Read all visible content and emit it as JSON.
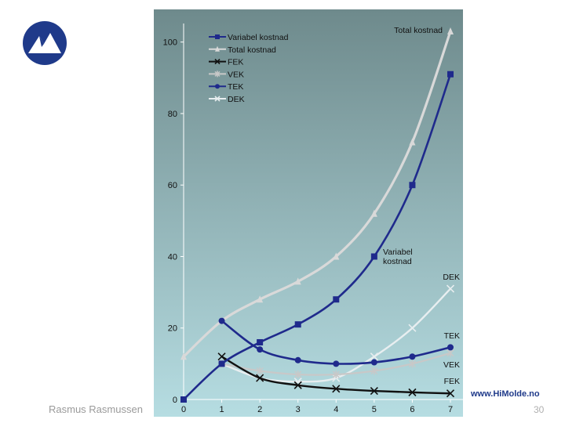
{
  "branding": {
    "author": "Rasmus Rasmussen",
    "website": "www.HiMolde.no",
    "page_number": "30"
  },
  "colors": {
    "plot_bg_top": "#6e8a8c",
    "plot_bg_bottom": "#b6dde2",
    "variable_cost": "#1f2a8c",
    "total_cost": "#d9d9d9",
    "fek": "#111111",
    "vek": "#c8c8c8",
    "tek": "#1f2a8c",
    "dek": "#e8eef0",
    "logo_circle": "#1f3a8a"
  },
  "chart_data": {
    "type": "line",
    "x": [
      0,
      1,
      2,
      3,
      4,
      5,
      6,
      7
    ],
    "xticks": [
      "0",
      "1",
      "2",
      "3",
      "4",
      "5",
      "6",
      "7"
    ],
    "yticks": [
      "0",
      "20",
      "40",
      "60",
      "80",
      "100"
    ],
    "ylim": [
      0,
      110
    ],
    "xlim": [
      0,
      7.3
    ],
    "series": [
      {
        "key": "variable_cost",
        "name": "Variabel kostnad",
        "marker": "square",
        "x": [
          0,
          1,
          2,
          3,
          4,
          5,
          6,
          7
        ],
        "values": [
          0,
          10,
          16,
          21,
          28,
          40,
          60,
          91
        ]
      },
      {
        "key": "total_cost",
        "name": "Total kostnad",
        "marker": "triangle",
        "x": [
          0,
          1,
          2,
          3,
          4,
          5,
          6,
          7
        ],
        "values": [
          12,
          22,
          28,
          33,
          40,
          52,
          72,
          103
        ]
      },
      {
        "key": "fek",
        "name": "FEK",
        "marker": "x",
        "x": [
          1,
          2,
          3,
          4,
          5,
          6,
          7
        ],
        "values": [
          12,
          6,
          4,
          3,
          2.4,
          2,
          1.7
        ]
      },
      {
        "key": "vek",
        "name": "VEK",
        "marker": "star",
        "x": [
          1,
          2,
          3,
          4,
          5,
          6,
          7
        ],
        "values": [
          10,
          8,
          7,
          7,
          8,
          10,
          13
        ]
      },
      {
        "key": "tek",
        "name": "TEK",
        "marker": "circle",
        "x": [
          1,
          2,
          3,
          4,
          5,
          6,
          7
        ],
        "values": [
          22,
          14,
          11,
          10,
          10.4,
          12,
          14.6
        ]
      },
      {
        "key": "dek",
        "name": "DEK",
        "marker": "x",
        "x": [
          1,
          2,
          3,
          4,
          5,
          6,
          7
        ],
        "values": [
          10,
          6,
          5,
          6,
          12,
          20,
          31
        ]
      }
    ],
    "annotations": [
      {
        "key": "ann_total",
        "text": "Total kostnad"
      },
      {
        "key": "ann_var",
        "text": "Variabel kostnad"
      },
      {
        "key": "ann_dek",
        "text": "DEK"
      },
      {
        "key": "ann_tek",
        "text": "TEK"
      },
      {
        "key": "ann_vek",
        "text": "VEK"
      },
      {
        "key": "ann_fek",
        "text": "FEK"
      }
    ],
    "legend_position": "top-left"
  }
}
